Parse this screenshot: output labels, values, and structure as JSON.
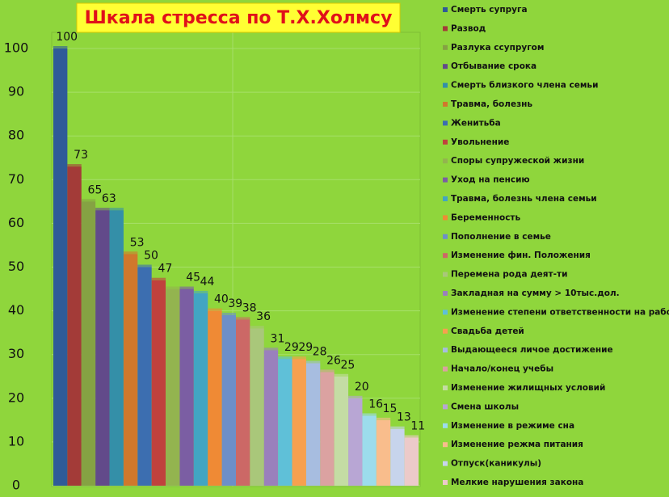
{
  "chart_data": {
    "type": "bar",
    "title": "Шкала стресса по Т.Х.Холмсу",
    "categories": [
      "Смерть супруга",
      "Развод",
      "Разлука ссупругом",
      "Отбывание срока",
      "Смерть близкого члена семьи",
      "Травма, болезнь",
      "Женитьба",
      "Увольнение",
      "Споры супружеской жизни",
      "Уход на пенсию",
      "Травма, болезнь члена семьи",
      "Беременность",
      "Пополнение в семье",
      "Изменение фин. Положения",
      "Перемена рода деят-ти",
      "Закладная на сумму > 10тыс.дол.",
      "Изменение степени ответственности на работе",
      "Свадьба детей",
      "Выдающееся личое достижение",
      "Начало/конец учебы",
      "Изменение жилищных условий",
      "Смена школы",
      "Изменение в режиме сна",
      "Изменение режма питания",
      "Отпуск(каникулы)",
      "Мелкие нарушения закона"
    ],
    "values": [
      100,
      73,
      65,
      63,
      63,
      53,
      50,
      47,
      45,
      45,
      44,
      40,
      39,
      38,
      36,
      31,
      29,
      29,
      28,
      26,
      25,
      20,
      16,
      15,
      13,
      11
    ],
    "value_labels": [
      "100",
      "73",
      "65",
      "63",
      null,
      "53",
      "50",
      "47",
      null,
      "45",
      "44",
      "40",
      "39",
      "38",
      "36",
      "31",
      "29",
      "29",
      "28",
      "26",
      "25",
      "20",
      "16",
      "15",
      "13",
      "11"
    ],
    "colors": [
      "#2f5b98",
      "#a33b38",
      "#85a243",
      "#624a8a",
      "#348fa8",
      "#d0782c",
      "#3c6eb0",
      "#c0413d",
      "#93b44f",
      "#7b5ea3",
      "#42a5c2",
      "#ef8a35",
      "#6d8fc8",
      "#cc6866",
      "#a9c77a",
      "#9a80bc",
      "#5fc0d8",
      "#f7a04f",
      "#a7bde0",
      "#dba2a1",
      "#c4dca4",
      "#b8a6d4",
      "#9cdcec",
      "#f9bd8c",
      "#c7d4ec",
      "#eccac9"
    ],
    "ylim": [
      0,
      100
    ],
    "yticks": [
      0,
      10,
      20,
      30,
      40,
      50,
      60,
      70,
      80,
      90,
      100
    ],
    "grid": true
  }
}
